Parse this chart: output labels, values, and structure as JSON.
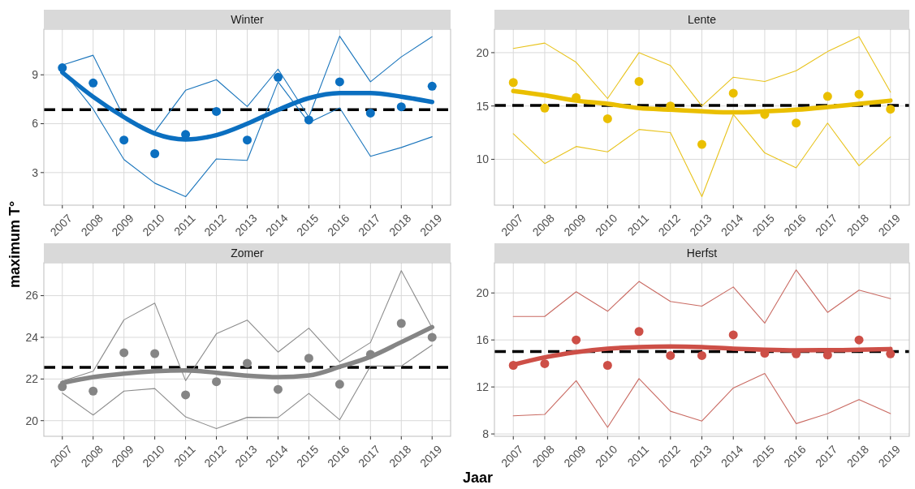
{
  "chart_data": [
    {
      "type": "line",
      "title": "Winter",
      "ylabel": "maximum T°",
      "x": [
        2007,
        2008,
        2009,
        2010,
        2011,
        2012,
        2013,
        2014,
        2015,
        2016,
        2017,
        2018,
        2019
      ],
      "xlim": [
        2006.4,
        2019.6
      ],
      "xticks": [
        2007,
        2008,
        2009,
        2010,
        2011,
        2012,
        2013,
        2014,
        2015,
        2016,
        2017,
        2018,
        2019
      ],
      "ylim": [
        1.0,
        11.8
      ],
      "yticks": [
        3,
        6,
        9
      ],
      "grid": true,
      "ref_lines": [
        {
          "axis": "y",
          "value": 6.86,
          "color": "#000000",
          "line_style": "dashed"
        }
      ],
      "series": [
        {
          "color": "#1a75bc",
          "values": [
            9.6,
            10.2,
            6.4,
            5.5,
            8.05,
            8.7,
            7.05,
            9.35,
            6.4,
            11.37,
            8.57,
            10.1,
            11.34
          ]
        },
        {
          "color": "#1a75bc",
          "values": [
            9.3,
            6.9,
            3.8,
            2.35,
            1.52,
            3.84,
            3.75,
            8.57,
            6.07,
            6.97,
            4.0,
            4.54,
            5.2
          ]
        },
        {
          "type": "scatter",
          "marker": "circle",
          "color": "#0b6fc0",
          "values": [
            9.43,
            8.5,
            5.0,
            4.16,
            5.34,
            6.75,
            5.0,
            8.85,
            6.23,
            8.57,
            6.65,
            7.04,
            8.3
          ]
        },
        {
          "type": "line",
          "color": "#0b6fc0",
          "x": [
            2007,
            2008,
            2009,
            2010,
            2011,
            2012,
            2013,
            2014,
            2015,
            2016,
            2017,
            2018,
            2019
          ],
          "values": [
            9.15,
            7.65,
            6.4,
            5.4,
            5.03,
            5.3,
            6.0,
            6.85,
            7.57,
            7.88,
            7.88,
            7.66,
            7.33
          ]
        }
      ]
    },
    {
      "type": "line",
      "title": "Lente",
      "x": [
        2007,
        2008,
        2009,
        2010,
        2011,
        2012,
        2013,
        2014,
        2015,
        2016,
        2017,
        2018,
        2019
      ],
      "xlim": [
        2006.4,
        2019.6
      ],
      "xticks": [
        2007,
        2008,
        2009,
        2010,
        2011,
        2012,
        2013,
        2014,
        2015,
        2016,
        2017,
        2018,
        2019
      ],
      "ylim": [
        5.7,
        22.2
      ],
      "yticks": [
        10,
        15,
        20
      ],
      "grid": true,
      "ref_lines": [
        {
          "axis": "y",
          "value": 15.05,
          "color": "#000000",
          "line_style": "dashed"
        }
      ],
      "series": [
        {
          "color": "#e8c31c",
          "values": [
            20.4,
            20.9,
            19.1,
            15.7,
            20.0,
            18.8,
            15.0,
            17.7,
            17.3,
            18.3,
            20.1,
            21.5,
            16.3
          ]
        },
        {
          "color": "#e8c31c",
          "values": [
            12.4,
            9.6,
            11.2,
            10.7,
            12.8,
            12.5,
            6.5,
            14.2,
            10.6,
            9.2,
            13.4,
            9.4,
            12.1
          ]
        },
        {
          "type": "scatter",
          "marker": "circle",
          "color": "#eabf00",
          "values": [
            17.2,
            14.8,
            15.8,
            13.8,
            17.3,
            15.0,
            11.4,
            16.2,
            14.2,
            13.4,
            15.9,
            16.1,
            14.7
          ]
        },
        {
          "type": "line",
          "color": "#eabf00",
          "x": [
            2007,
            2008,
            2009,
            2010,
            2011,
            2012,
            2013,
            2014,
            2015,
            2016,
            2017,
            2018,
            2019
          ],
          "values": [
            16.4,
            16.0,
            15.5,
            15.2,
            14.8,
            14.65,
            14.5,
            14.4,
            14.5,
            14.65,
            14.9,
            15.2,
            15.5
          ]
        }
      ]
    },
    {
      "type": "line",
      "title": "Zomer",
      "xlabel": "Jaar",
      "x": [
        2007,
        2008,
        2009,
        2010,
        2011,
        2012,
        2013,
        2014,
        2015,
        2016,
        2017,
        2018,
        2019
      ],
      "xlim": [
        2006.4,
        2019.6
      ],
      "xticks": [
        2007,
        2008,
        2009,
        2010,
        2011,
        2012,
        2013,
        2014,
        2015,
        2016,
        2017,
        2018,
        2019
      ],
      "ylim": [
        19.25,
        27.58
      ],
      "yticks": [
        20,
        22,
        24,
        26
      ],
      "grid": true,
      "ref_lines": [
        {
          "axis": "y",
          "value": 22.56,
          "color": "#000000",
          "line_style": "dashed"
        }
      ],
      "series": [
        {
          "color": "#8c8c8c",
          "values": [
            21.9,
            22.37,
            24.84,
            25.64,
            21.92,
            24.17,
            24.83,
            23.29,
            24.44,
            22.82,
            23.75,
            27.2,
            24.46
          ]
        },
        {
          "color": "#8c8c8c",
          "values": [
            21.32,
            20.27,
            21.42,
            21.54,
            20.18,
            19.62,
            20.16,
            20.15,
            21.31,
            20.04,
            22.62,
            22.62,
            23.63
          ]
        },
        {
          "type": "scatter",
          "marker": "circle",
          "color": "#858585",
          "values": [
            21.63,
            21.42,
            23.26,
            23.22,
            21.24,
            21.87,
            22.75,
            21.5,
            23.0,
            21.75,
            23.18,
            24.67,
            24.0
          ]
        },
        {
          "type": "line",
          "color": "#858585",
          "x": [
            2007,
            2008,
            2009,
            2010,
            2011,
            2012,
            2013,
            2014,
            2015,
            2016,
            2017,
            2018,
            2019
          ],
          "values": [
            21.81,
            22.09,
            22.26,
            22.37,
            22.41,
            22.3,
            22.16,
            22.09,
            22.17,
            22.58,
            23.07,
            23.77,
            24.49
          ]
        }
      ]
    },
    {
      "type": "line",
      "title": "Herfst",
      "x": [
        2007,
        2008,
        2009,
        2010,
        2011,
        2012,
        2013,
        2014,
        2015,
        2016,
        2017,
        2018,
        2019
      ],
      "xlim": [
        2006.4,
        2019.6
      ],
      "xticks": [
        2007,
        2008,
        2009,
        2010,
        2011,
        2012,
        2013,
        2014,
        2015,
        2016,
        2017,
        2018,
        2019
      ],
      "ylim": [
        7.8,
        22.57
      ],
      "yticks": [
        8,
        12,
        16,
        20
      ],
      "grid": true,
      "ref_lines": [
        {
          "axis": "y",
          "value": 15.01,
          "color": "#000000",
          "line_style": "dashed"
        }
      ],
      "series": [
        {
          "color": "#c96a62",
          "values": [
            18.0,
            18.0,
            20.1,
            18.44,
            20.98,
            19.27,
            18.88,
            20.51,
            17.43,
            21.96,
            18.34,
            20.24,
            19.51
          ]
        },
        {
          "color": "#c96a62",
          "values": [
            9.54,
            9.66,
            12.54,
            8.56,
            12.71,
            9.93,
            9.1,
            11.91,
            13.15,
            8.88,
            9.73,
            10.93,
            9.73
          ]
        },
        {
          "type": "scatter",
          "marker": "circle",
          "color": "#cd4f47",
          "values": [
            13.84,
            13.98,
            16.0,
            13.84,
            16.72,
            14.67,
            14.67,
            16.43,
            14.87,
            14.82,
            14.72,
            16.0,
            14.82
          ]
        },
        {
          "type": "line",
          "color": "#cd4f47",
          "x": [
            2007,
            2008,
            2009,
            2010,
            2011,
            2012,
            2013,
            2014,
            2015,
            2016,
            2017,
            2018,
            2019
          ],
          "values": [
            13.89,
            14.52,
            14.96,
            15.26,
            15.4,
            15.45,
            15.4,
            15.26,
            15.16,
            15.11,
            15.13,
            15.16,
            15.23
          ]
        }
      ]
    }
  ]
}
